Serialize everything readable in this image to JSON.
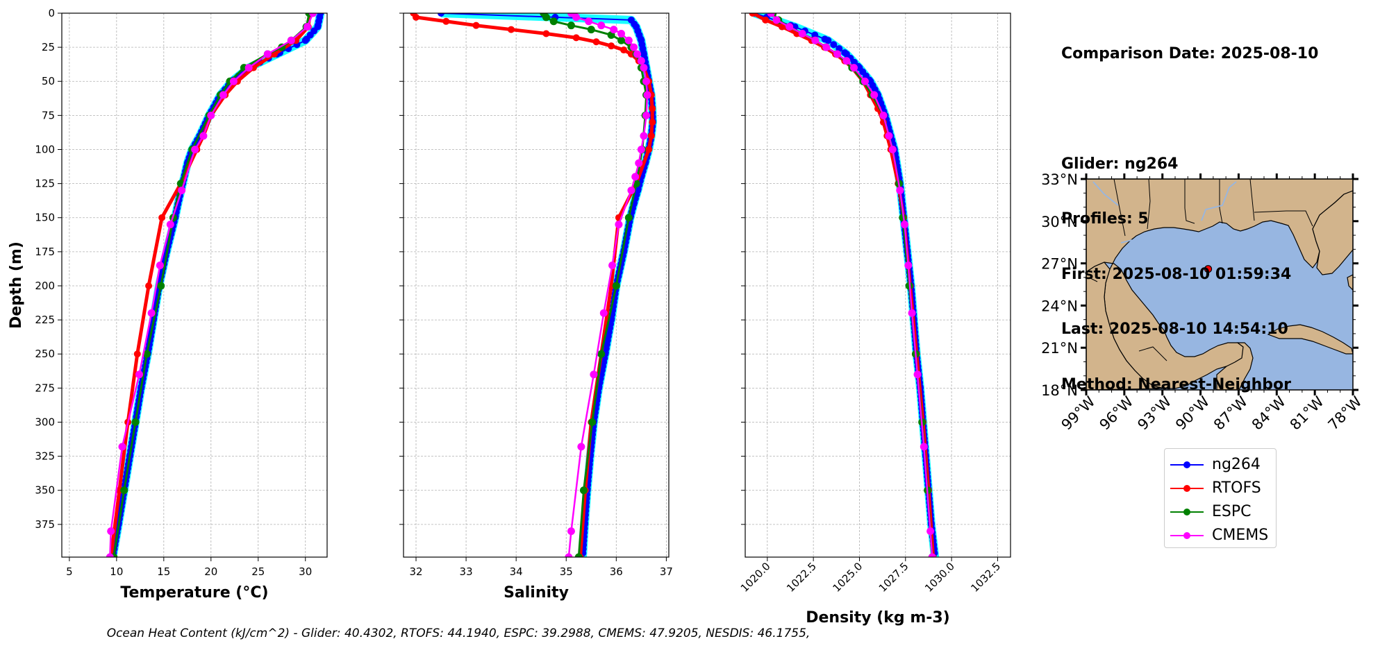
{
  "info": {
    "comparison_date": "Comparison Date: 2025-08-10",
    "glider": "Glider: ng264",
    "profiles": "Profiles: 5",
    "first": "First: 2025-08-10 01:59:34",
    "last": "Last: 2025-08-10 14:54:10",
    "method": "Method: Nearest-Neighbor"
  },
  "caption": "Ocean Heat Content (kJ/cm^2) - Glider: 40.4302,  RTOFS: 44.1940,  ESPC: 39.2988,  CMEMS: 47.9205,  NESDIS: 46.1755,",
  "legend": [
    {
      "name": "ng264",
      "color": "#0000ff"
    },
    {
      "name": "RTOFS",
      "color": "#ff0000"
    },
    {
      "name": "ESPC",
      "color": "#008000"
    },
    {
      "name": "CMEMS",
      "color": "#ff00ff"
    }
  ],
  "chart_data": [
    {
      "type": "line",
      "xlabel": "Temperature (°C)",
      "ylabel": "Depth (m)",
      "xlim": [
        4.2,
        32.3
      ],
      "ylim": [
        399,
        0
      ],
      "xticks": [
        "5",
        "10",
        "15",
        "20",
        "25",
        "30"
      ],
      "yticks": [
        "0",
        "25",
        "50",
        "75",
        "100",
        "125",
        "150",
        "175",
        "200",
        "225",
        "250",
        "275",
        "300",
        "325",
        "350",
        "375"
      ],
      "grid": true,
      "series": [
        {
          "name": "ng264",
          "color": "#0000ff",
          "depth": [
            0,
            10,
            20,
            30,
            40,
            50,
            60,
            75,
            90,
            100,
            110,
            125,
            140,
            150,
            175,
            200,
            225,
            250,
            275,
            300,
            325,
            350,
            375,
            399
          ],
          "values": [
            31.6,
            31.3,
            30.0,
            27.0,
            24.0,
            22.2,
            21.0,
            19.8,
            18.8,
            18.0,
            17.5,
            17.0,
            16.5,
            16.2,
            15.3,
            14.5,
            13.9,
            13.3,
            12.6,
            12.0,
            11.4,
            10.8,
            10.2,
            9.6
          ]
        },
        {
          "name": "RTOFS",
          "color": "#ff0000",
          "depth": [
            0,
            10,
            20,
            30,
            40,
            50,
            60,
            75,
            90,
            100,
            125,
            150,
            200,
            250,
            300,
            350,
            399
          ],
          "values": [
            30.5,
            30.3,
            29.0,
            26.7,
            24.5,
            22.8,
            21.5,
            20.0,
            19.2,
            18.5,
            16.8,
            14.8,
            13.4,
            12.2,
            11.2,
            10.3,
            9.4
          ]
        },
        {
          "name": "ESPC",
          "color": "#008000",
          "depth": [
            0,
            10,
            20,
            25,
            30,
            40,
            50,
            60,
            75,
            100,
            125,
            150,
            200,
            250,
            300,
            350,
            399
          ],
          "values": [
            30.4,
            30.1,
            28.5,
            27.5,
            26.0,
            23.5,
            22.0,
            21.0,
            19.8,
            18.0,
            16.8,
            16.0,
            14.7,
            13.2,
            12.0,
            10.8,
            9.7
          ]
        },
        {
          "name": "CMEMS",
          "color": "#ff00ff",
          "depth": [
            0,
            10,
            20,
            30,
            40,
            50,
            60,
            75,
            90,
            100,
            130,
            155,
            185,
            220,
            265,
            318,
            380,
            399
          ],
          "values": [
            30.8,
            30.2,
            28.5,
            26.0,
            24.0,
            22.4,
            21.3,
            20.0,
            19.2,
            18.3,
            16.9,
            15.7,
            14.6,
            13.7,
            12.4,
            10.6,
            9.4,
            9.3
          ]
        }
      ]
    },
    {
      "type": "line",
      "xlabel": "Salinity",
      "xlim": [
        31.75,
        37.05
      ],
      "ylim": [
        399,
        0
      ],
      "xticks": [
        "32",
        "33",
        "34",
        "35",
        "36",
        "37"
      ],
      "grid": true,
      "series": [
        {
          "name": "ng264",
          "color": "#0000ff",
          "depth": [
            0,
            5,
            10,
            20,
            30,
            40,
            50,
            60,
            70,
            80,
            90,
            100,
            110,
            120,
            130,
            140,
            150,
            175,
            200,
            225,
            250,
            275,
            300,
            325,
            350,
            375,
            399
          ],
          "values": [
            32.5,
            36.3,
            36.4,
            36.5,
            36.55,
            36.6,
            36.65,
            36.7,
            36.72,
            36.73,
            36.7,
            36.65,
            36.58,
            36.5,
            36.43,
            36.35,
            36.28,
            36.15,
            36.0,
            35.9,
            35.78,
            35.65,
            35.55,
            35.48,
            35.42,
            35.37,
            35.33
          ]
        },
        {
          "name": "RTOFS",
          "color": "#ff0000",
          "depth": [
            0,
            3,
            6,
            9,
            12,
            15,
            18,
            21,
            24,
            27,
            30,
            35,
            40,
            50,
            60,
            70,
            80,
            90,
            100,
            125,
            150,
            200,
            250,
            300,
            350,
            399
          ],
          "values": [
            31.95,
            32.0,
            32.6,
            33.2,
            33.9,
            34.6,
            35.2,
            35.6,
            35.9,
            36.15,
            36.3,
            36.45,
            36.55,
            36.65,
            36.7,
            36.72,
            36.72,
            36.7,
            36.65,
            36.4,
            36.05,
            35.9,
            35.7,
            35.5,
            35.38,
            35.28
          ]
        },
        {
          "name": "ESPC",
          "color": "#008000",
          "depth": [
            0,
            3,
            6,
            9,
            12,
            16,
            20,
            25,
            30,
            40,
            50,
            60,
            75,
            100,
            125,
            150,
            200,
            250,
            300,
            350,
            399
          ],
          "values": [
            34.55,
            34.6,
            34.75,
            35.1,
            35.5,
            35.9,
            36.1,
            36.3,
            36.4,
            36.5,
            36.55,
            36.6,
            36.58,
            36.52,
            36.4,
            36.25,
            36.0,
            35.7,
            35.52,
            35.35,
            35.25
          ]
        },
        {
          "name": "CMEMS",
          "color": "#ff00ff",
          "depth": [
            0,
            3,
            6,
            9,
            12,
            15,
            20,
            25,
            30,
            35,
            40,
            50,
            60,
            75,
            90,
            100,
            110,
            120,
            130,
            155,
            185,
            220,
            265,
            318,
            380,
            399
          ],
          "values": [
            35.1,
            35.2,
            35.45,
            35.7,
            35.95,
            36.1,
            36.25,
            36.35,
            36.42,
            36.5,
            36.55,
            36.6,
            36.62,
            36.6,
            36.55,
            36.5,
            36.45,
            36.38,
            36.3,
            36.05,
            35.92,
            35.75,
            35.55,
            35.3,
            35.1,
            35.05
          ]
        }
      ]
    },
    {
      "type": "line",
      "xlabel": "Density (kg m-3)",
      "xlim": [
        1018.8,
        1033.2
      ],
      "ylim": [
        399,
        0
      ],
      "xticks": [
        "1020.0",
        "1022.5",
        "1025.0",
        "1027.5",
        "1030.0",
        "1032.5"
      ],
      "grid": true,
      "series": [
        {
          "name": "ng264",
          "color": "#0000ff",
          "depth": [
            0,
            10,
            20,
            30,
            40,
            50,
            60,
            75,
            90,
            100,
            125,
            150,
            175,
            200,
            225,
            250,
            275,
            300,
            325,
            350,
            375,
            399
          ],
          "values": [
            1019.3,
            1021.5,
            1023.3,
            1024.3,
            1025.0,
            1025.6,
            1026.0,
            1026.4,
            1026.7,
            1026.9,
            1027.2,
            1027.4,
            1027.6,
            1027.8,
            1027.95,
            1028.1,
            1028.3,
            1028.45,
            1028.6,
            1028.75,
            1028.9,
            1029.1
          ]
        },
        {
          "name": "RTOFS",
          "color": "#ff0000",
          "depth": [
            0,
            5,
            10,
            15,
            20,
            25,
            30,
            35,
            40,
            50,
            60,
            70,
            80,
            90,
            100,
            125,
            150,
            200,
            250,
            300,
            350,
            399
          ],
          "values": [
            1019.2,
            1019.9,
            1020.8,
            1021.6,
            1022.4,
            1023.1,
            1023.7,
            1024.2,
            1024.6,
            1025.2,
            1025.6,
            1026.0,
            1026.3,
            1026.5,
            1026.7,
            1027.1,
            1027.4,
            1027.75,
            1028.1,
            1028.45,
            1028.75,
            1029.0
          ]
        },
        {
          "name": "ESPC",
          "color": "#008000",
          "depth": [
            0,
            5,
            10,
            20,
            25,
            30,
            40,
            50,
            60,
            75,
            100,
            125,
            150,
            200,
            250,
            300,
            350,
            399
          ],
          "values": [
            1020.3,
            1020.6,
            1021.2,
            1022.6,
            1023.2,
            1023.8,
            1024.6,
            1025.2,
            1025.7,
            1026.3,
            1026.8,
            1027.15,
            1027.35,
            1027.7,
            1028.05,
            1028.4,
            1028.7,
            1028.95
          ]
        },
        {
          "name": "CMEMS",
          "color": "#ff00ff",
          "depth": [
            0,
            5,
            10,
            15,
            20,
            25,
            30,
            35,
            40,
            50,
            60,
            75,
            90,
            100,
            130,
            155,
            185,
            220,
            265,
            318,
            380,
            399
          ],
          "values": [
            1020.2,
            1020.5,
            1021.2,
            1021.9,
            1022.6,
            1023.2,
            1023.8,
            1024.3,
            1024.7,
            1025.3,
            1025.8,
            1026.3,
            1026.6,
            1026.8,
            1027.2,
            1027.45,
            1027.65,
            1027.85,
            1028.15,
            1028.5,
            1028.85,
            1028.95
          ]
        }
      ]
    }
  ],
  "map": {
    "lat_labels": [
      "33°N",
      "30°N",
      "27°N",
      "24°N",
      "21°N",
      "18°N"
    ],
    "lon_labels": [
      "99°W",
      "96°W",
      "93°W",
      "90°W",
      "87°W",
      "84°W",
      "81°W",
      "78°W"
    ],
    "lat_range": [
      18,
      33
    ],
    "lon_range": [
      -99,
      -78
    ],
    "glider_position": {
      "lon": -89.4,
      "lat": 26.6
    },
    "land_color": "#d2b48c",
    "ocean_color": "#97b6e1"
  }
}
